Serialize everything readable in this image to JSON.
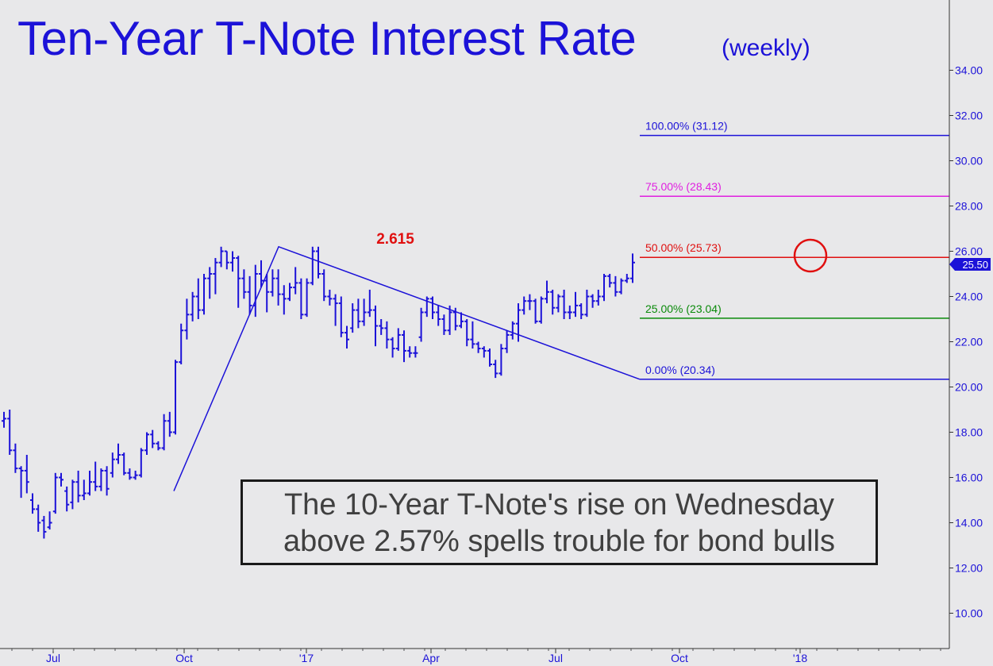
{
  "header": {
    "title": "Ten-Year T-Note Interest Rate",
    "subtitle": "(weekly)"
  },
  "annotation": {
    "line1": "The 10-Year T-Note's rise on Wednesday",
    "line2": "above 2.57% spells trouble for bond bulls"
  },
  "chart_data": {
    "type": "ohlc",
    "title": "Ten-Year T-Note Interest Rate",
    "subtitle": "(weekly)",
    "xlabel": "",
    "ylabel": "",
    "ylim": [
      8.5,
      36
    ],
    "y_ticks": [
      "10.00",
      "12.00",
      "14.00",
      "16.00",
      "18.00",
      "20.00",
      "22.00",
      "24.00",
      "26.00",
      "28.00",
      "30.00",
      "32.00",
      "34.00"
    ],
    "x_ticks": [
      "Jul",
      "Oct",
      "'17",
      "Apr",
      "Jul",
      "Oct",
      "'18"
    ],
    "last_price_label": "25.50",
    "last_price": 25.5,
    "peak_label": "2.615",
    "peak_label_color": "#e01010",
    "fib_levels": [
      {
        "label": "100.00% (31.12)",
        "value": 31.12,
        "color": "#1c12d8"
      },
      {
        "label": "75.00% (28.43)",
        "value": 28.43,
        "color": "#e020e0"
      },
      {
        "label": "50.00% (25.73)",
        "value": 25.73,
        "color": "#e01010"
      },
      {
        "label": "25.00% (23.04)",
        "value": 23.04,
        "color": "#0a8a0a"
      },
      {
        "label": "0.00% (20.34)",
        "value": 20.34,
        "color": "#1c12d8"
      }
    ],
    "trend_points": [
      15.4,
      26.2,
      20.34
    ],
    "bar_color": "#1c12d8",
    "bars": [
      {
        "o": 18.5,
        "h": 18.9,
        "l": 18.2,
        "c": 18.6
      },
      {
        "o": 18.6,
        "h": 19.0,
        "l": 17.0,
        "c": 17.2
      },
      {
        "o": 17.2,
        "h": 17.5,
        "l": 16.2,
        "c": 16.4
      },
      {
        "o": 16.4,
        "h": 16.5,
        "l": 15.1,
        "c": 16.3
      },
      {
        "o": 16.3,
        "h": 17.0,
        "l": 15.3,
        "c": 15.8
      },
      {
        "o": 15.0,
        "h": 15.3,
        "l": 14.4,
        "c": 14.6
      },
      {
        "o": 14.6,
        "h": 14.8,
        "l": 13.6,
        "c": 14.0
      },
      {
        "o": 14.1,
        "h": 14.3,
        "l": 13.3,
        "c": 13.6
      },
      {
        "o": 13.8,
        "h": 14.5,
        "l": 13.7,
        "c": 14.0
      },
      {
        "o": 14.5,
        "h": 16.2,
        "l": 14.4,
        "c": 16.0
      },
      {
        "o": 16.0,
        "h": 16.2,
        "l": 15.6,
        "c": 15.9
      },
      {
        "o": 15.4,
        "h": 15.6,
        "l": 14.5,
        "c": 14.8
      },
      {
        "o": 14.9,
        "h": 15.9,
        "l": 14.6,
        "c": 15.8
      },
      {
        "o": 15.8,
        "h": 16.3,
        "l": 14.9,
        "c": 15.2
      },
      {
        "o": 15.2,
        "h": 15.9,
        "l": 15.0,
        "c": 15.3
      },
      {
        "o": 15.3,
        "h": 16.3,
        "l": 15.2,
        "c": 15.8
      },
      {
        "o": 15.8,
        "h": 16.7,
        "l": 15.4,
        "c": 15.6
      },
      {
        "o": 15.6,
        "h": 16.4,
        "l": 15.4,
        "c": 16.3
      },
      {
        "o": 16.3,
        "h": 16.5,
        "l": 15.2,
        "c": 15.5
      },
      {
        "o": 16.2,
        "h": 17.1,
        "l": 16.0,
        "c": 16.8
      },
      {
        "o": 16.8,
        "h": 17.5,
        "l": 16.6,
        "c": 17.0
      },
      {
        "o": 17.0,
        "h": 17.1,
        "l": 16.1,
        "c": 16.2
      },
      {
        "o": 16.2,
        "h": 16.4,
        "l": 15.9,
        "c": 16.0
      },
      {
        "o": 16.0,
        "h": 16.3,
        "l": 15.9,
        "c": 16.1
      },
      {
        "o": 16.1,
        "h": 17.3,
        "l": 16.0,
        "c": 17.2
      },
      {
        "o": 17.2,
        "h": 18.0,
        "l": 17.0,
        "c": 17.9
      },
      {
        "o": 17.9,
        "h": 18.1,
        "l": 17.3,
        "c": 17.5
      },
      {
        "o": 17.5,
        "h": 17.6,
        "l": 17.2,
        "c": 17.3
      },
      {
        "o": 17.3,
        "h": 18.8,
        "l": 17.2,
        "c": 18.5
      },
      {
        "o": 18.5,
        "h": 18.9,
        "l": 17.8,
        "c": 18.0
      },
      {
        "o": 18.0,
        "h": 21.2,
        "l": 17.9,
        "c": 21.1
      },
      {
        "o": 21.1,
        "h": 22.8,
        "l": 21.0,
        "c": 22.5
      },
      {
        "o": 22.5,
        "h": 23.9,
        "l": 22.1,
        "c": 23.2
      },
      {
        "o": 23.2,
        "h": 24.2,
        "l": 22.9,
        "c": 24.0
      },
      {
        "o": 24.0,
        "h": 24.8,
        "l": 23.0,
        "c": 23.4
      },
      {
        "o": 23.4,
        "h": 25.0,
        "l": 23.2,
        "c": 24.8
      },
      {
        "o": 24.8,
        "h": 25.3,
        "l": 23.9,
        "c": 25.0
      },
      {
        "o": 25.0,
        "h": 25.7,
        "l": 24.1,
        "c": 25.5
      },
      {
        "o": 25.5,
        "h": 26.2,
        "l": 25.3,
        "c": 26.0
      },
      {
        "o": 26.0,
        "h": 26.0,
        "l": 25.2,
        "c": 25.5
      },
      {
        "o": 25.5,
        "h": 26.0,
        "l": 25.1,
        "c": 25.7
      },
      {
        "o": 25.7,
        "h": 25.8,
        "l": 23.5,
        "c": 24.8
      },
      {
        "o": 24.8,
        "h": 25.2,
        "l": 23.9,
        "c": 24.2
      },
      {
        "o": 24.2,
        "h": 24.9,
        "l": 23.2,
        "c": 23.6
      },
      {
        "o": 23.6,
        "h": 25.4,
        "l": 23.1,
        "c": 25.0
      },
      {
        "o": 25.0,
        "h": 25.6,
        "l": 24.4,
        "c": 24.7
      },
      {
        "o": 24.7,
        "h": 25.0,
        "l": 23.3,
        "c": 24.2
      },
      {
        "o": 24.2,
        "h": 25.2,
        "l": 24.0,
        "c": 24.8
      },
      {
        "o": 24.8,
        "h": 25.2,
        "l": 23.6,
        "c": 24.1
      },
      {
        "o": 24.1,
        "h": 24.5,
        "l": 23.2,
        "c": 23.9
      },
      {
        "o": 23.9,
        "h": 24.6,
        "l": 23.8,
        "c": 24.4
      },
      {
        "o": 24.4,
        "h": 25.3,
        "l": 24.1,
        "c": 24.6
      },
      {
        "o": 24.6,
        "h": 24.8,
        "l": 23.0,
        "c": 23.2
      },
      {
        "o": 23.2,
        "h": 24.8,
        "l": 23.1,
        "c": 24.6
      },
      {
        "o": 24.6,
        "h": 26.2,
        "l": 24.5,
        "c": 26.0
      },
      {
        "o": 26.0,
        "h": 26.2,
        "l": 24.8,
        "c": 25.0
      },
      {
        "o": 25.0,
        "h": 25.2,
        "l": 23.8,
        "c": 24.0
      },
      {
        "o": 24.0,
        "h": 24.3,
        "l": 23.6,
        "c": 23.9
      },
      {
        "o": 23.9,
        "h": 24.1,
        "l": 22.7,
        "c": 23.7
      },
      {
        "o": 23.7,
        "h": 24.0,
        "l": 22.2,
        "c": 22.4
      },
      {
        "o": 22.4,
        "h": 22.7,
        "l": 21.7,
        "c": 22.1
      },
      {
        "o": 22.6,
        "h": 23.7,
        "l": 22.4,
        "c": 23.4
      },
      {
        "o": 23.4,
        "h": 23.9,
        "l": 22.6,
        "c": 22.9
      },
      {
        "o": 22.9,
        "h": 23.9,
        "l": 22.7,
        "c": 23.3
      },
      {
        "o": 23.3,
        "h": 24.3,
        "l": 23.1,
        "c": 23.4
      },
      {
        "o": 23.4,
        "h": 23.6,
        "l": 21.8,
        "c": 22.7
      },
      {
        "o": 22.7,
        "h": 23.0,
        "l": 22.3,
        "c": 22.6
      },
      {
        "o": 22.6,
        "h": 22.9,
        "l": 21.7,
        "c": 22.1
      },
      {
        "o": 22.1,
        "h": 22.2,
        "l": 21.3,
        "c": 21.7
      },
      {
        "o": 21.7,
        "h": 22.6,
        "l": 21.6,
        "c": 22.3
      },
      {
        "o": 22.3,
        "h": 22.5,
        "l": 21.1,
        "c": 21.6
      },
      {
        "o": 21.6,
        "h": 21.8,
        "l": 21.3,
        "c": 21.5
      },
      {
        "o": 21.5,
        "h": 21.8,
        "l": 21.3,
        "c": 21.5
      },
      {
        "o": 22.2,
        "h": 23.5,
        "l": 22.0,
        "c": 23.3
      },
      {
        "o": 23.3,
        "h": 24.0,
        "l": 23.1,
        "c": 23.9
      },
      {
        "o": 23.9,
        "h": 24.0,
        "l": 23.0,
        "c": 23.3
      },
      {
        "o": 23.3,
        "h": 23.6,
        "l": 22.7,
        "c": 23.0
      },
      {
        "o": 23.0,
        "h": 23.2,
        "l": 22.3,
        "c": 22.5
      },
      {
        "o": 22.5,
        "h": 23.6,
        "l": 22.3,
        "c": 23.3
      },
      {
        "o": 23.3,
        "h": 23.5,
        "l": 22.5,
        "c": 22.7
      },
      {
        "o": 22.7,
        "h": 23.3,
        "l": 22.6,
        "c": 22.9
      },
      {
        "o": 22.9,
        "h": 23.0,
        "l": 21.8,
        "c": 22.1
      },
      {
        "o": 22.1,
        "h": 22.9,
        "l": 21.7,
        "c": 21.9
      },
      {
        "o": 21.9,
        "h": 22.0,
        "l": 21.5,
        "c": 21.7
      },
      {
        "o": 21.7,
        "h": 21.8,
        "l": 21.3,
        "c": 21.6
      },
      {
        "o": 21.6,
        "h": 21.7,
        "l": 20.9,
        "c": 21.0
      },
      {
        "o": 21.0,
        "h": 21.2,
        "l": 20.4,
        "c": 20.6
      },
      {
        "o": 20.6,
        "h": 21.9,
        "l": 20.5,
        "c": 21.7
      },
      {
        "o": 21.7,
        "h": 22.5,
        "l": 21.5,
        "c": 22.3
      },
      {
        "o": 22.3,
        "h": 22.9,
        "l": 22.1,
        "c": 22.8
      },
      {
        "o": 22.8,
        "h": 23.7,
        "l": 22.0,
        "c": 23.4
      },
      {
        "o": 23.4,
        "h": 24.0,
        "l": 23.2,
        "c": 23.8
      },
      {
        "o": 23.8,
        "h": 24.1,
        "l": 23.4,
        "c": 23.8
      },
      {
        "o": 23.8,
        "h": 23.9,
        "l": 22.8,
        "c": 22.9
      },
      {
        "o": 22.9,
        "h": 24.0,
        "l": 22.8,
        "c": 23.9
      },
      {
        "o": 23.9,
        "h": 24.7,
        "l": 23.7,
        "c": 24.2
      },
      {
        "o": 24.2,
        "h": 24.3,
        "l": 23.2,
        "c": 23.5
      },
      {
        "o": 23.5,
        "h": 24.1,
        "l": 23.3,
        "c": 24.0
      },
      {
        "o": 24.0,
        "h": 24.3,
        "l": 23.0,
        "c": 23.3
      },
      {
        "o": 23.3,
        "h": 23.6,
        "l": 23.0,
        "c": 23.3
      },
      {
        "o": 23.3,
        "h": 24.2,
        "l": 23.1,
        "c": 23.6
      },
      {
        "o": 23.6,
        "h": 23.7,
        "l": 23.0,
        "c": 23.2
      },
      {
        "o": 23.2,
        "h": 24.3,
        "l": 23.1,
        "c": 24.0
      },
      {
        "o": 24.0,
        "h": 24.1,
        "l": 23.5,
        "c": 23.8
      },
      {
        "o": 23.8,
        "h": 24.3,
        "l": 23.6,
        "c": 24.0
      },
      {
        "o": 24.0,
        "h": 25.0,
        "l": 23.8,
        "c": 24.9
      },
      {
        "o": 24.9,
        "h": 25.0,
        "l": 24.4,
        "c": 24.6
      },
      {
        "o": 24.6,
        "h": 24.9,
        "l": 24.0,
        "c": 24.2
      },
      {
        "o": 24.2,
        "h": 24.8,
        "l": 24.1,
        "c": 24.7
      },
      {
        "o": 24.7,
        "h": 25.0,
        "l": 24.6,
        "c": 24.8
      },
      {
        "o": 24.8,
        "h": 25.9,
        "l": 24.6,
        "c": 25.5
      }
    ]
  }
}
